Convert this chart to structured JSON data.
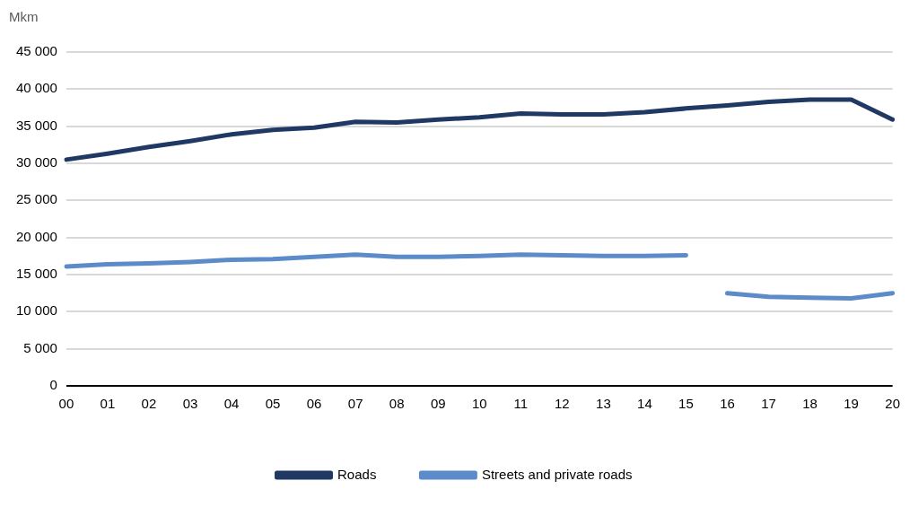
{
  "chart_data": {
    "type": "line",
    "ylabel": "Mkm",
    "categories": [
      "00",
      "01",
      "02",
      "03",
      "04",
      "05",
      "06",
      "07",
      "08",
      "09",
      "10",
      "11",
      "12",
      "13",
      "14",
      "15",
      "16",
      "17",
      "18",
      "19",
      "20"
    ],
    "series": [
      {
        "name": "Roads",
        "color": "#203864",
        "values": [
          30500,
          31300,
          32200,
          33000,
          33900,
          34500,
          34800,
          35600,
          35500,
          35900,
          36200,
          36700,
          36600,
          36600,
          36900,
          37400,
          37800,
          38300,
          38600,
          38600,
          35900
        ]
      },
      {
        "name": "Streets and private roads",
        "color": "#5b8bc9",
        "values": [
          16100,
          16400,
          16500,
          16700,
          17000,
          17100,
          17400,
          17700,
          17400,
          17400,
          17500,
          17700,
          17600,
          17500,
          17500,
          17600,
          null,
          null,
          null,
          null,
          null
        ]
      },
      {
        "color": "#5b8bc9",
        "values": [
          null,
          null,
          null,
          null,
          null,
          null,
          null,
          null,
          null,
          null,
          null,
          null,
          null,
          null,
          null,
          null,
          12500,
          12000,
          11900,
          11800,
          12500
        ]
      }
    ],
    "ylim": [
      0,
      45000
    ],
    "yticks": [
      {
        "value": 0,
        "label": "0"
      },
      {
        "value": 5000,
        "label": "5 000"
      },
      {
        "value": 10000,
        "label": "10 000"
      },
      {
        "value": 15000,
        "label": "15 000"
      },
      {
        "value": 20000,
        "label": "20 000"
      },
      {
        "value": 25000,
        "label": "25 000"
      },
      {
        "value": 30000,
        "label": "30 000"
      },
      {
        "value": 35000,
        "label": "35 000"
      },
      {
        "value": 40000,
        "label": "40 000"
      },
      {
        "value": 45000,
        "label": "45 000"
      }
    ],
    "grid": "y",
    "legend": "bottom",
    "marker": "none",
    "line_style": "solid"
  }
}
